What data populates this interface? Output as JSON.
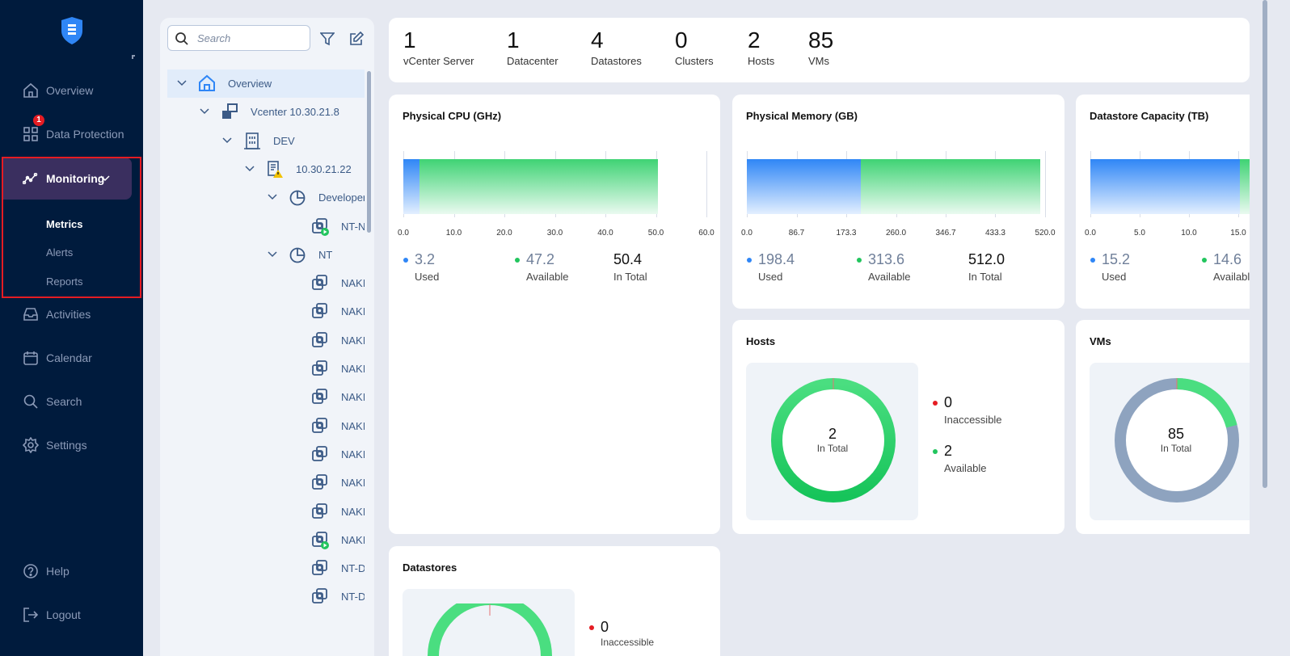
{
  "sidebar": {
    "items": [
      {
        "label": "Overview",
        "icon": "home-icon"
      },
      {
        "label": "Data Protection",
        "icon": "grid-icon",
        "badge": "1"
      },
      {
        "label": "Monitoring",
        "icon": "chart-line-icon",
        "expanded": true
      },
      {
        "label": "Activities",
        "icon": "inbox-icon"
      },
      {
        "label": "Calendar",
        "icon": "calendar-icon"
      },
      {
        "label": "Search",
        "icon": "search-icon"
      },
      {
        "label": "Settings",
        "icon": "gear-icon"
      },
      {
        "label": "Help",
        "icon": "help-icon"
      },
      {
        "label": "Logout",
        "icon": "logout-icon"
      }
    ],
    "monitoring_sub": [
      "Metrics",
      "Alerts",
      "Reports"
    ],
    "active_sub": "Metrics"
  },
  "tree": {
    "search_placeholder": "Search",
    "nodes": [
      {
        "label": "Overview",
        "icon": "home-icon",
        "selected": true
      },
      {
        "label": "Vcenter 10.30.21.8",
        "icon": "vcenter-icon"
      },
      {
        "label": "DEV",
        "icon": "datacenter-icon"
      },
      {
        "label": "10.30.21.22",
        "icon": "host-warning-icon"
      },
      {
        "label": "Developers",
        "icon": "resource-pool-icon"
      },
      {
        "label": "NT-NA",
        "icon": "vm-running-icon"
      },
      {
        "label": "NT",
        "icon": "resource-pool-icon"
      },
      {
        "label": "NAKIV",
        "icon": "vm-icon"
      },
      {
        "label": "NAKIV",
        "icon": "vm-icon"
      },
      {
        "label": "NAKIV",
        "icon": "vm-icon"
      },
      {
        "label": "NAKIV",
        "icon": "vm-icon"
      },
      {
        "label": "NAKIV",
        "icon": "vm-icon"
      },
      {
        "label": "NAKIV",
        "icon": "vm-icon"
      },
      {
        "label": "NAKIV",
        "icon": "vm-icon"
      },
      {
        "label": "NAKIV",
        "icon": "vm-icon"
      },
      {
        "label": "NAKIV",
        "icon": "vm-icon"
      },
      {
        "label": "NAKIV",
        "icon": "vm-running-icon"
      },
      {
        "label": "NT-De",
        "icon": "vm-icon"
      },
      {
        "label": "NT-De",
        "icon": "vm-icon"
      }
    ]
  },
  "summary": [
    {
      "value": "1",
      "label": "vCenter Server"
    },
    {
      "value": "1",
      "label": "Datacenter"
    },
    {
      "value": "4",
      "label": "Datastores"
    },
    {
      "value": "0",
      "label": "Clusters"
    },
    {
      "value": "2",
      "label": "Hosts"
    },
    {
      "value": "85",
      "label": "VMs"
    }
  ],
  "cpu": {
    "title": "Physical CPU (GHz)",
    "used": "3.2",
    "available": "47.2",
    "total": "50.4",
    "used_label": "Used",
    "available_label": "Available",
    "total_label": "In Total",
    "ticks": [
      "0.0",
      "10.0",
      "20.0",
      "30.0",
      "40.0",
      "50.0",
      "60.0"
    ],
    "axis_max": 60
  },
  "memory": {
    "title": "Physical Memory (GB)",
    "used": "198.4",
    "available": "313.6",
    "total": "512.0",
    "used_label": "Used",
    "available_label": "Available",
    "total_label": "In Total",
    "ticks": [
      "0.0",
      "86.7",
      "173.3",
      "260.0",
      "346.7",
      "433.3",
      "520.0"
    ],
    "axis_max": 520
  },
  "datastore_capacity": {
    "title": "Datastore Capacity (TB)",
    "used": "15.2",
    "available": "14.6",
    "used_label": "Used",
    "available_label": "Availabl",
    "ticks": [
      "0.0",
      "5.0",
      "10.0",
      "15.0"
    ]
  },
  "hosts": {
    "title": "Hosts",
    "total": "2",
    "total_label": "In Total",
    "inaccessible": "0",
    "inaccessible_label": "Inaccessible",
    "available": "2",
    "available_label": "Available"
  },
  "vms": {
    "title": "VMs",
    "total": "85",
    "total_label": "In Total",
    "green_share": 0.21
  },
  "datastores": {
    "title": "Datastores",
    "inaccessible": "0",
    "inaccessible_label": "Inaccessible"
  },
  "colors": {
    "used": "#2f86f6",
    "available": "#22c55e",
    "inaccessible": "#e51c23",
    "sidebar": "#001b3d",
    "active_nav": "#3a2f5f",
    "vm_other": "#8ea3bf"
  }
}
